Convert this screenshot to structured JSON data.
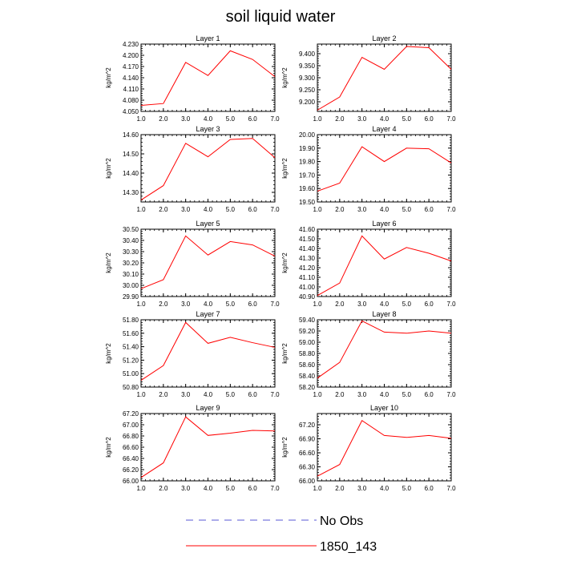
{
  "title": "soil liquid water",
  "legend": [
    {
      "label": "No Obs",
      "color": "#5a5ad6",
      "style": "dashed"
    },
    {
      "label": "1850_143",
      "color": "#ff0000",
      "style": "solid"
    }
  ],
  "chart_data": [
    {
      "type": "line",
      "title": "Layer 1",
      "ylabel": "kg/m^2",
      "xlabel": "",
      "x": [
        1,
        2,
        3,
        4,
        5,
        6,
        7
      ],
      "xlim": [
        1.0,
        7.0
      ],
      "xticks": [
        "1.0",
        "2.0",
        "3.0",
        "4.0",
        "5.0",
        "6.0",
        "7.0"
      ],
      "ylim": [
        4.05,
        4.23
      ],
      "yticks": [
        "4.050",
        "4.080",
        "4.110",
        "4.140",
        "4.170",
        "4.200",
        "4.230"
      ],
      "series": [
        {
          "name": "1850_143",
          "color": "#ff0000",
          "values": [
            4.066,
            4.071,
            4.181,
            4.146,
            4.212,
            4.189,
            4.143
          ]
        }
      ]
    },
    {
      "type": "line",
      "title": "Layer 2",
      "ylabel": "kg/m^2",
      "xlabel": "",
      "x": [
        1,
        2,
        3,
        4,
        5,
        6,
        7
      ],
      "xlim": [
        1.0,
        7.0
      ],
      "xticks": [
        "1.0",
        "2.0",
        "3.0",
        "4.0",
        "5.0",
        "6.0",
        "7.0"
      ],
      "ylim": [
        9.16,
        9.44
      ],
      "yticks": [
        "9.200",
        "9.250",
        "9.300",
        "9.350",
        "9.400"
      ],
      "series": [
        {
          "name": "1850_143",
          "color": "#ff0000",
          "values": [
            9.165,
            9.22,
            9.385,
            9.335,
            9.43,
            9.425,
            9.335
          ]
        }
      ]
    },
    {
      "type": "line",
      "title": "Layer 3",
      "ylabel": "kg/m^2",
      "xlabel": "",
      "x": [
        1,
        2,
        3,
        4,
        5,
        6,
        7
      ],
      "xlim": [
        1.0,
        7.0
      ],
      "xticks": [
        "1.0",
        "2.0",
        "3.0",
        "4.0",
        "5.0",
        "6.0",
        "7.0"
      ],
      "ylim": [
        14.25,
        14.6
      ],
      "yticks": [
        "14.30",
        "14.40",
        "14.50",
        "14.60"
      ],
      "series": [
        {
          "name": "1850_143",
          "color": "#ff0000",
          "values": [
            14.26,
            14.335,
            14.555,
            14.485,
            14.575,
            14.58,
            14.48
          ]
        }
      ]
    },
    {
      "type": "line",
      "title": "Layer 4",
      "ylabel": "kg/m^2",
      "xlabel": "",
      "x": [
        1,
        2,
        3,
        4,
        5,
        6,
        7
      ],
      "xlim": [
        1.0,
        7.0
      ],
      "xticks": [
        "1.0",
        "2.0",
        "3.0",
        "4.0",
        "5.0",
        "6.0",
        "7.0"
      ],
      "ylim": [
        19.5,
        20.0
      ],
      "yticks": [
        "19.50",
        "19.60",
        "19.70",
        "19.80",
        "19.90",
        "20.00"
      ],
      "series": [
        {
          "name": "1850_143",
          "color": "#ff0000",
          "values": [
            19.58,
            19.64,
            19.91,
            19.8,
            19.9,
            19.895,
            19.79
          ]
        }
      ]
    },
    {
      "type": "line",
      "title": "Layer 5",
      "ylabel": "kg/m^2",
      "xlabel": "",
      "x": [
        1,
        2,
        3,
        4,
        5,
        6,
        7
      ],
      "xlim": [
        1.0,
        7.0
      ],
      "xticks": [
        "1.0",
        "2.0",
        "3.0",
        "4.0",
        "5.0",
        "6.0",
        "7.0"
      ],
      "ylim": [
        29.9,
        30.5
      ],
      "yticks": [
        "29.90",
        "30.00",
        "30.10",
        "30.20",
        "30.30",
        "30.40",
        "30.50"
      ],
      "series": [
        {
          "name": "1850_143",
          "color": "#ff0000",
          "values": [
            29.97,
            30.05,
            30.44,
            30.27,
            30.39,
            30.36,
            30.26
          ]
        }
      ]
    },
    {
      "type": "line",
      "title": "Layer 6",
      "ylabel": "kg/m^2",
      "xlabel": "",
      "x": [
        1,
        2,
        3,
        4,
        5,
        6,
        7
      ],
      "xlim": [
        1.0,
        7.0
      ],
      "xticks": [
        "1.0",
        "2.0",
        "3.0",
        "4.0",
        "5.0",
        "6.0",
        "7.0"
      ],
      "ylim": [
        40.9,
        41.6
      ],
      "yticks": [
        "40.90",
        "41.00",
        "41.10",
        "41.20",
        "41.30",
        "41.40",
        "41.50",
        "41.60"
      ],
      "series": [
        {
          "name": "1850_143",
          "color": "#ff0000",
          "values": [
            40.91,
            41.04,
            41.53,
            41.29,
            41.41,
            41.35,
            41.27
          ]
        }
      ]
    },
    {
      "type": "line",
      "title": "Layer 7",
      "ylabel": "kg/m^2",
      "xlabel": "",
      "x": [
        1,
        2,
        3,
        4,
        5,
        6,
        7
      ],
      "xlim": [
        1.0,
        7.0
      ],
      "xticks": [
        "1.0",
        "2.0",
        "3.0",
        "4.0",
        "5.0",
        "6.0",
        "7.0"
      ],
      "ylim": [
        50.8,
        51.8
      ],
      "yticks": [
        "50.80",
        "51.00",
        "51.20",
        "51.40",
        "51.60",
        "51.80"
      ],
      "series": [
        {
          "name": "1850_143",
          "color": "#ff0000",
          "values": [
            50.9,
            51.12,
            51.76,
            51.45,
            51.54,
            51.46,
            51.39
          ]
        }
      ]
    },
    {
      "type": "line",
      "title": "Layer 8",
      "ylabel": "kg/m^2",
      "xlabel": "",
      "x": [
        1,
        2,
        3,
        4,
        5,
        6,
        7
      ],
      "xlim": [
        1.0,
        7.0
      ],
      "xticks": [
        "1.0",
        "2.0",
        "3.0",
        "4.0",
        "5.0",
        "6.0",
        "7.0"
      ],
      "ylim": [
        58.2,
        59.4
      ],
      "yticks": [
        "58.20",
        "58.40",
        "58.60",
        "58.80",
        "59.00",
        "59.20",
        "59.40"
      ],
      "series": [
        {
          "name": "1850_143",
          "color": "#ff0000",
          "values": [
            58.36,
            58.64,
            59.38,
            59.18,
            59.16,
            59.2,
            59.16
          ]
        }
      ]
    },
    {
      "type": "line",
      "title": "Layer 9",
      "ylabel": "kg/m^2",
      "xlabel": "",
      "x": [
        1,
        2,
        3,
        4,
        5,
        6,
        7
      ],
      "xlim": [
        1.0,
        7.0
      ],
      "xticks": [
        "1.0",
        "2.0",
        "3.0",
        "4.0",
        "5.0",
        "6.0",
        "7.0"
      ],
      "ylim": [
        66.0,
        67.2
      ],
      "yticks": [
        "66.00",
        "66.20",
        "66.40",
        "66.60",
        "66.80",
        "67.00",
        "67.20"
      ],
      "series": [
        {
          "name": "1850_143",
          "color": "#ff0000",
          "values": [
            66.06,
            66.32,
            67.14,
            66.81,
            66.85,
            66.9,
            66.89
          ]
        }
      ]
    },
    {
      "type": "line",
      "title": "Layer 10",
      "ylabel": "kg/m^2",
      "xlabel": "",
      "x": [
        1,
        2,
        3,
        4,
        5,
        6,
        7
      ],
      "xlim": [
        1.0,
        7.0
      ],
      "xticks": [
        "1.0",
        "2.0",
        "3.0",
        "4.0",
        "5.0",
        "6.0",
        "7.0"
      ],
      "ylim": [
        66.0,
        67.44
      ],
      "yticks": [
        "66.00",
        "66.30",
        "66.60",
        "66.90",
        "67.20"
      ],
      "series": [
        {
          "name": "1850_143",
          "color": "#ff0000",
          "values": [
            66.1,
            66.35,
            67.29,
            66.97,
            66.93,
            66.97,
            66.91
          ]
        }
      ]
    }
  ]
}
